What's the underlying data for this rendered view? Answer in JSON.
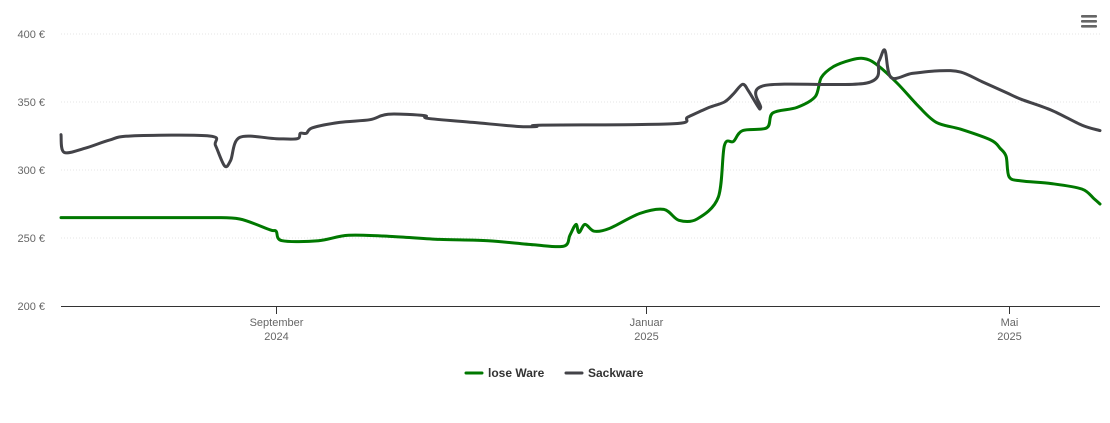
{
  "menu": {
    "icon": "hamburger-menu-icon"
  },
  "chart_data": {
    "type": "line",
    "title": "",
    "xlabel": "",
    "ylabel": "",
    "ylim": [
      200,
      400
    ],
    "y_ticks": [
      200,
      250,
      300,
      350,
      400
    ],
    "y_tick_labels": [
      "200 €",
      "250 €",
      "300 €",
      "350 €",
      "400 €"
    ],
    "x_range": [
      "2024-06-22",
      "2025-05-31"
    ],
    "x_ticks": [
      {
        "date": "2024-09-01",
        "line1": "September",
        "line2": "2024"
      },
      {
        "date": "2025-01-01",
        "line1": "Januar",
        "line2": "2025"
      },
      {
        "date": "2025-05-01",
        "line1": "Mai",
        "line2": "2025"
      }
    ],
    "grid": true,
    "legend": "bottom-center",
    "series": [
      {
        "name": "lose Ware",
        "color": "#007800",
        "points": [
          [
            "2024-06-22",
            265
          ],
          [
            "2024-07-20",
            265
          ],
          [
            "2024-08-10",
            265
          ],
          [
            "2024-08-20",
            264
          ],
          [
            "2024-08-30",
            256
          ],
          [
            "2024-09-01",
            255
          ],
          [
            "2024-09-03",
            248
          ],
          [
            "2024-09-15",
            248
          ],
          [
            "2024-09-25",
            252
          ],
          [
            "2024-10-10",
            251
          ],
          [
            "2024-10-25",
            249
          ],
          [
            "2024-11-10",
            248
          ],
          [
            "2024-11-25",
            245
          ],
          [
            "2024-12-05",
            244
          ],
          [
            "2024-12-07",
            252
          ],
          [
            "2024-12-09",
            260
          ],
          [
            "2024-12-10",
            254
          ],
          [
            "2024-12-12",
            260
          ],
          [
            "2024-12-15",
            255
          ],
          [
            "2024-12-20",
            257
          ],
          [
            "2024-12-30",
            268
          ],
          [
            "2025-01-07",
            271
          ],
          [
            "2025-01-12",
            263
          ],
          [
            "2025-01-18",
            264
          ],
          [
            "2025-01-25",
            280
          ],
          [
            "2025-01-27",
            318
          ],
          [
            "2025-01-30",
            321
          ],
          [
            "2025-02-02",
            329
          ],
          [
            "2025-02-10",
            331
          ],
          [
            "2025-02-12",
            342
          ],
          [
            "2025-02-20",
            346
          ],
          [
            "2025-02-26",
            354
          ],
          [
            "2025-02-28",
            368
          ],
          [
            "2025-03-04",
            376
          ],
          [
            "2025-03-10",
            381
          ],
          [
            "2025-03-14",
            382
          ],
          [
            "2025-03-18",
            378
          ],
          [
            "2025-03-25",
            364
          ],
          [
            "2025-04-01",
            347
          ],
          [
            "2025-04-07",
            335
          ],
          [
            "2025-04-15",
            330
          ],
          [
            "2025-04-25",
            322
          ],
          [
            "2025-04-28",
            316
          ],
          [
            "2025-04-30",
            310
          ],
          [
            "2025-05-01",
            295
          ],
          [
            "2025-05-05",
            292
          ],
          [
            "2025-05-15",
            290
          ],
          [
            "2025-05-25",
            286
          ],
          [
            "2025-05-29",
            279
          ],
          [
            "2025-05-31",
            275
          ]
        ]
      },
      {
        "name": "Sackware",
        "color": "#434348",
        "points": [
          [
            "2024-06-22",
            326
          ],
          [
            "2024-06-23",
            313
          ],
          [
            "2024-06-30",
            316
          ],
          [
            "2024-07-08",
            322
          ],
          [
            "2024-07-15",
            325
          ],
          [
            "2024-08-10",
            325
          ],
          [
            "2024-08-12",
            318
          ],
          [
            "2024-08-15",
            303
          ],
          [
            "2024-08-17",
            307
          ],
          [
            "2024-08-20",
            324
          ],
          [
            "2024-09-01",
            323
          ],
          [
            "2024-09-08",
            323
          ],
          [
            "2024-09-09",
            327
          ],
          [
            "2024-09-11",
            327
          ],
          [
            "2024-09-13",
            331
          ],
          [
            "2024-09-22",
            335
          ],
          [
            "2024-10-02",
            337
          ],
          [
            "2024-10-08",
            341
          ],
          [
            "2024-10-20",
            340
          ],
          [
            "2024-10-21",
            338
          ],
          [
            "2024-11-05",
            335
          ],
          [
            "2024-11-20",
            332
          ],
          [
            "2024-11-26",
            332
          ],
          [
            "2024-11-28",
            333
          ],
          [
            "2025-01-10",
            334
          ],
          [
            "2025-01-15",
            339
          ],
          [
            "2025-01-22",
            346
          ],
          [
            "2025-01-27",
            350
          ],
          [
            "2025-01-30",
            356
          ],
          [
            "2025-02-02",
            363
          ],
          [
            "2025-02-04",
            358
          ],
          [
            "2025-02-07",
            347
          ],
          [
            "2025-02-08",
            346
          ],
          [
            "2025-02-09",
            362
          ],
          [
            "2025-03-15",
            364
          ],
          [
            "2025-03-19",
            380
          ],
          [
            "2025-03-21",
            388
          ],
          [
            "2025-03-23",
            368
          ],
          [
            "2025-03-30",
            371
          ],
          [
            "2025-04-08",
            373
          ],
          [
            "2025-04-15",
            372
          ],
          [
            "2025-04-22",
            365
          ],
          [
            "2025-04-30",
            357
          ],
          [
            "2025-05-05",
            352
          ],
          [
            "2025-05-15",
            344
          ],
          [
            "2025-05-25",
            333
          ],
          [
            "2025-05-31",
            329
          ]
        ]
      }
    ]
  }
}
